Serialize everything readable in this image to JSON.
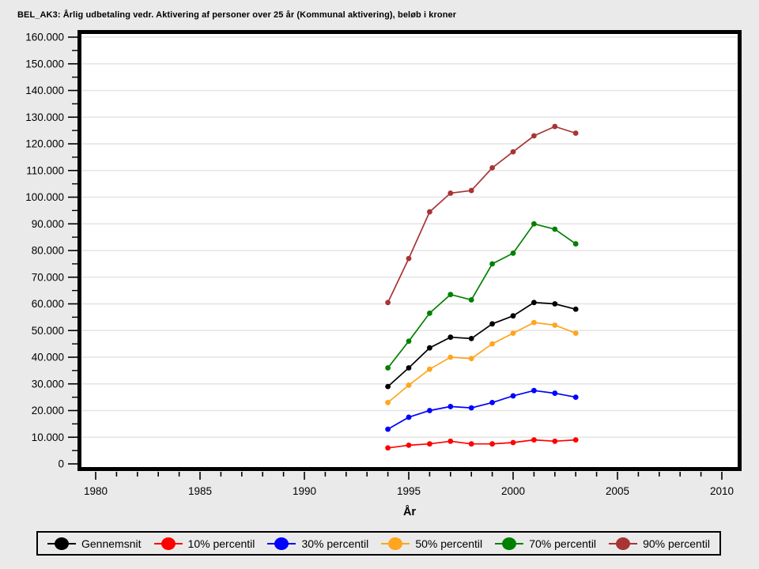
{
  "title": "BEL_AK3: Årlig udbetaling vedr. Aktivering af personer over 25 år (Kommunal aktivering), beløb i kroner",
  "chart_data": {
    "type": "line",
    "x": [
      1994,
      1995,
      1996,
      1997,
      1998,
      1999,
      2000,
      2001,
      2002,
      2003
    ],
    "series": [
      {
        "name": "Gennemsnit",
        "color": "#000000",
        "values": [
          29000,
          36000,
          43500,
          47500,
          47000,
          52500,
          55500,
          60500,
          60000,
          58000
        ]
      },
      {
        "name": "10% percentil",
        "color": "#ff0000",
        "values": [
          6000,
          7000,
          7500,
          8500,
          7500,
          7500,
          8000,
          9000,
          8500,
          9000
        ]
      },
      {
        "name": "30% percentil",
        "color": "#0000ff",
        "values": [
          13000,
          17500,
          20000,
          21500,
          21000,
          23000,
          25500,
          27500,
          26500,
          25000
        ]
      },
      {
        "name": "50% percentil",
        "color": "#ffa51e",
        "values": [
          23000,
          29500,
          35500,
          40000,
          39500,
          45000,
          49000,
          53000,
          52000,
          49000
        ]
      },
      {
        "name": "70% percentil",
        "color": "#008000",
        "values": [
          36000,
          46000,
          56500,
          63500,
          61500,
          75000,
          79000,
          90000,
          88000,
          82500
        ]
      },
      {
        "name": "90% percentil",
        "color": "#a83434",
        "values": [
          60500,
          77000,
          94500,
          101500,
          102500,
          111000,
          117000,
          123000,
          126500,
          124000
        ]
      }
    ],
    "title": "BEL_AK3: Årlig udbetaling vedr. Aktivering af personer over 25 år (Kommunal aktivering), beløb i kroner",
    "xlabel": "År",
    "ylabel": "",
    "xlim": [
      1979.4,
      2010.7
    ],
    "ylim": [
      0,
      161800
    ],
    "x_tick_labels": [
      "1980",
      "1985",
      "1990",
      "1995",
      "2000",
      "2005",
      "2010"
    ],
    "x_major_step": 5,
    "x_minor_step": 1,
    "y_tick_labels": [
      "0",
      "10.000",
      "20.000",
      "30.000",
      "40.000",
      "50.000",
      "60.000",
      "70.000",
      "80.000",
      "90.000",
      "100.000",
      "110.000",
      "120.000",
      "130.000",
      "140.000",
      "150.000",
      "160.000"
    ],
    "y_major_step": 10000,
    "y_minor_step": 5000,
    "grid": "horizontal-major-only",
    "legend_position": "bottom"
  },
  "colors": {
    "page_bg": "#eaeaea",
    "plot_bg": "#ffffff",
    "grid": "#e4e4e4",
    "frame": "#000000",
    "tick": "#000000",
    "text": "#000000"
  }
}
